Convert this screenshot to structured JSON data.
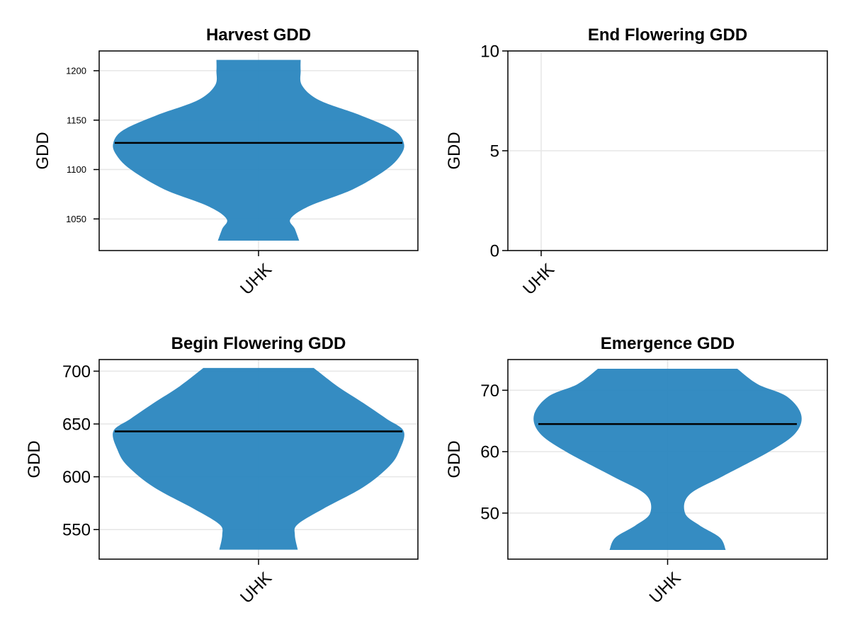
{
  "colors": {
    "violin": "#2a86bf",
    "grid": "#e6e6e6",
    "axis": "#000000"
  },
  "chart_data": [
    {
      "type": "violin",
      "title": "Harvest GDD",
      "xlabel": "",
      "ylabel": "GDD",
      "categories": [
        "UHK"
      ],
      "ylim": [
        1018,
        1220
      ],
      "yticks": [
        1050,
        1100,
        1150,
        1200
      ],
      "ytick_labels": [
        "1050",
        "1100",
        "1150",
        "1200"
      ],
      "median": 1127,
      "range": [
        1028,
        1211
      ],
      "density": [
        {
          "y": 1028,
          "w": 0.28
        },
        {
          "y": 1040,
          "w": 0.25
        },
        {
          "y": 1050,
          "w": 0.22
        },
        {
          "y": 1063,
          "w": 0.35
        },
        {
          "y": 1080,
          "w": 0.65
        },
        {
          "y": 1100,
          "w": 0.88
        },
        {
          "y": 1115,
          "w": 0.98
        },
        {
          "y": 1127,
          "w": 1.0
        },
        {
          "y": 1140,
          "w": 0.93
        },
        {
          "y": 1155,
          "w": 0.7
        },
        {
          "y": 1170,
          "w": 0.42
        },
        {
          "y": 1185,
          "w": 0.3
        },
        {
          "y": 1200,
          "w": 0.29
        },
        {
          "y": 1211,
          "w": 0.29
        }
      ]
    },
    {
      "type": "violin",
      "title": "End Flowering GDD",
      "xlabel": "",
      "ylabel": "GDD",
      "categories": [
        "UHK"
      ],
      "ylim": [
        0,
        10
      ],
      "yticks": [
        0,
        5,
        10
      ],
      "ytick_labels": [
        "0",
        "5",
        "10"
      ],
      "empty": true
    },
    {
      "type": "violin",
      "title": "Begin Flowering GDD",
      "xlabel": "",
      "ylabel": "GDD",
      "categories": [
        "UHK"
      ],
      "ylim": [
        522,
        711
      ],
      "yticks": [
        550,
        600,
        650,
        700
      ],
      "ytick_labels": [
        "550",
        "600",
        "650",
        "700"
      ],
      "median": 643,
      "range": [
        531,
        703
      ],
      "density": [
        {
          "y": 531,
          "w": 0.27
        },
        {
          "y": 545,
          "w": 0.25
        },
        {
          "y": 555,
          "w": 0.27
        },
        {
          "y": 570,
          "w": 0.45
        },
        {
          "y": 590,
          "w": 0.72
        },
        {
          "y": 610,
          "w": 0.9
        },
        {
          "y": 625,
          "w": 0.97
        },
        {
          "y": 643,
          "w": 1.0
        },
        {
          "y": 655,
          "w": 0.88
        },
        {
          "y": 670,
          "w": 0.72
        },
        {
          "y": 685,
          "w": 0.55
        },
        {
          "y": 703,
          "w": 0.38
        }
      ]
    },
    {
      "type": "violin",
      "title": "Emergence GDD",
      "xlabel": "",
      "ylabel": "GDD",
      "categories": [
        "UHK"
      ],
      "ylim": [
        42.5,
        75
      ],
      "yticks": [
        50,
        60,
        70
      ],
      "ytick_labels": [
        "50",
        "60",
        "70"
      ],
      "median": 64.5,
      "range": [
        44,
        73.5
      ],
      "density": [
        {
          "y": 44,
          "w": 0.4
        },
        {
          "y": 46,
          "w": 0.36
        },
        {
          "y": 48,
          "w": 0.22
        },
        {
          "y": 50,
          "w": 0.12
        },
        {
          "y": 53,
          "w": 0.15
        },
        {
          "y": 56,
          "w": 0.38
        },
        {
          "y": 60,
          "w": 0.7
        },
        {
          "y": 63,
          "w": 0.88
        },
        {
          "y": 66,
          "w": 0.92
        },
        {
          "y": 69,
          "w": 0.82
        },
        {
          "y": 71,
          "w": 0.62
        },
        {
          "y": 73.5,
          "w": 0.48
        }
      ]
    }
  ]
}
